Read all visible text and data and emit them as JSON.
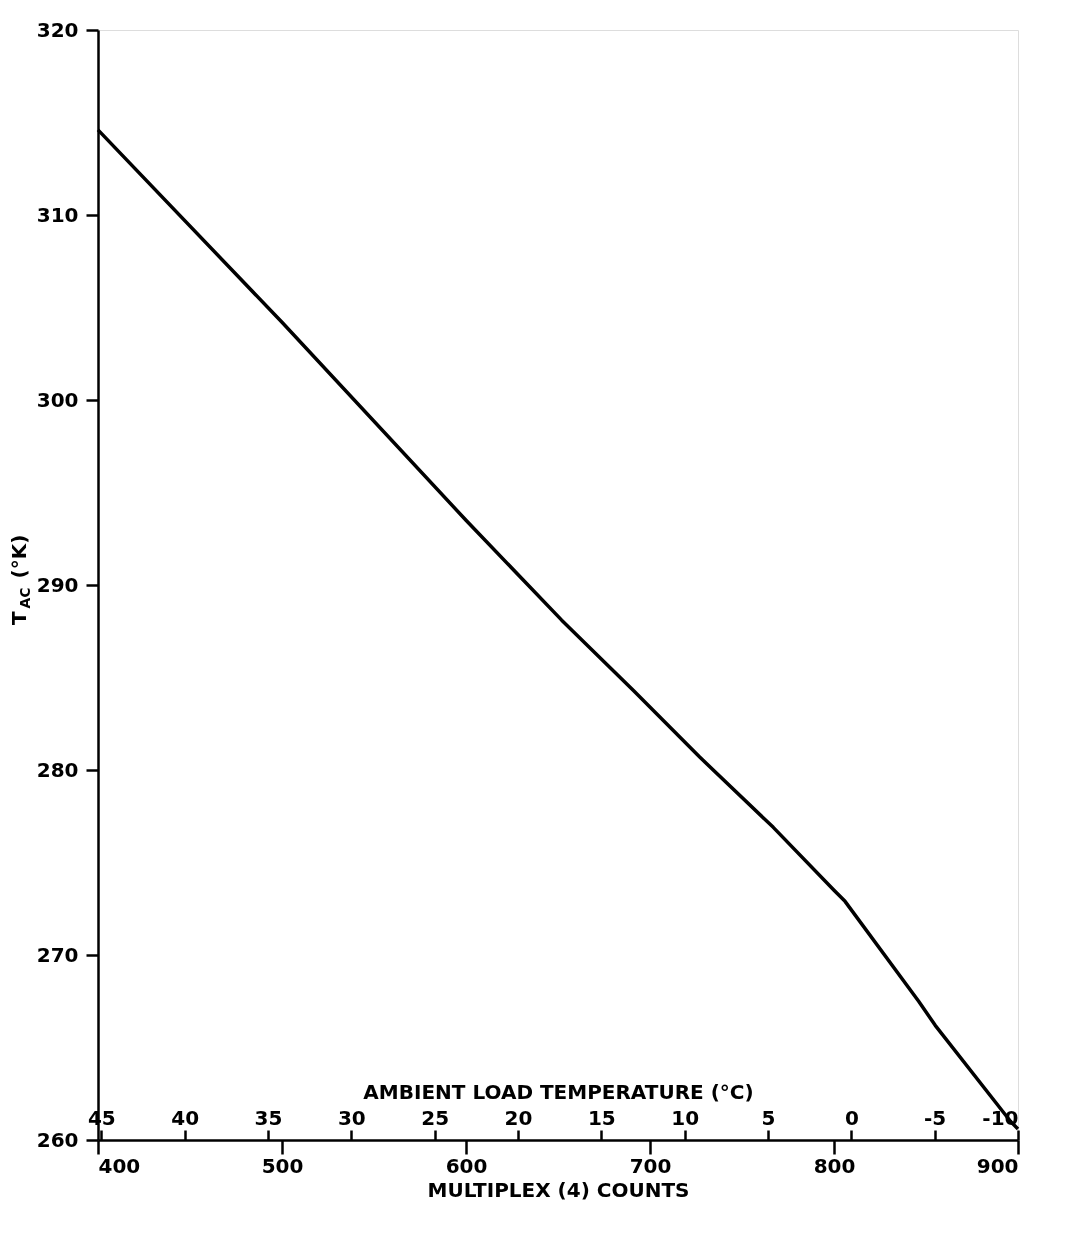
{
  "chart_data": {
    "type": "line",
    "xlabel": "MULTIPLEX (4) COUNTS",
    "ylabel": "T$_{AC}$ (°K)",
    "x2label": "AMBIENT LOAD TEMPERATURE (°C)",
    "x": [
      400,
      500,
      600,
      652,
      691,
      727,
      767,
      800,
      806,
      846,
      855,
      896,
      900
    ],
    "series": [
      {
        "color": "#000000",
        "values": [
          314.6,
          304.2,
          293.5,
          288.1,
          284.3,
          280.7,
          276.9,
          273.5,
          272.9,
          267.5,
          266.2,
          261.0,
          260.6
        ]
      }
    ],
    "xlim": [
      400,
      900
    ],
    "xticks": [
      400,
      500,
      600,
      700,
      800,
      900
    ],
    "ylim": [
      260,
      320
    ],
    "yticks": [
      260,
      270,
      280,
      290,
      300,
      310,
      320
    ],
    "x2lim": [
      45.2,
      -10
    ],
    "x2ticks": [
      45,
      40,
      35,
      30,
      25,
      20,
      15,
      10,
      5,
      0,
      -5,
      -10
    ],
    "grid": false,
    "marker": "none",
    "line_style": "solid"
  }
}
